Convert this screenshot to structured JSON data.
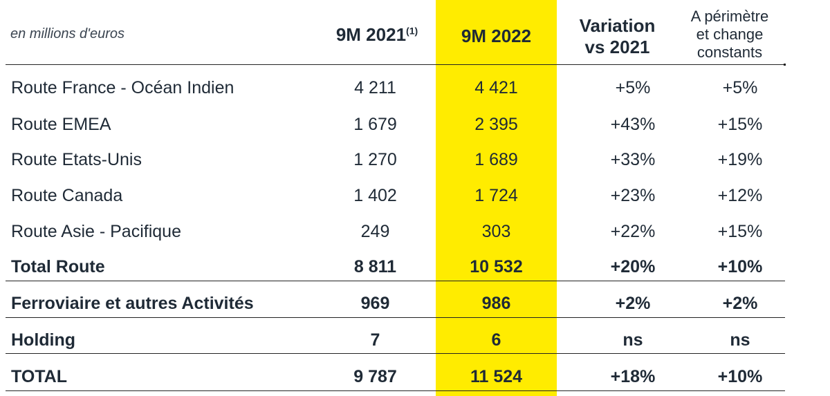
{
  "table": {
    "unit_label": "en millions d'euros",
    "col_2021": "9M 2021",
    "col_2021_note": "(1)",
    "col_2022": "9M 2022",
    "col_variation_line1": "Variation",
    "col_variation_line2": "vs 2021",
    "col_constant_line1": "A périmètre",
    "col_constant_line2": "et change",
    "col_constant_line3": "constants",
    "highlight_color": "#ffec00",
    "rows": [
      {
        "label": "Route France - Océan Indien",
        "v2021": "4 211",
        "v2022": "4 421",
        "variation": "+5%",
        "constant": "+5%"
      },
      {
        "label": "Route EMEA",
        "v2021": "1 679",
        "v2022": "2 395",
        "variation": "+43%",
        "constant": "+15%"
      },
      {
        "label": "Route Etats-Unis",
        "v2021": "1 270",
        "v2022": "1 689",
        "variation": "+33%",
        "constant": "+19%"
      },
      {
        "label": "Route Canada",
        "v2021": "1 402",
        "v2022": "1 724",
        "variation": "+23%",
        "constant": "+12%"
      },
      {
        "label": "Route Asie - Pacifique",
        "v2021": "249",
        "v2022": "303",
        "variation": "+22%",
        "constant": "+15%"
      },
      {
        "label": "Total Route",
        "v2021": "8 811",
        "v2022": "10 532",
        "variation": "+20%",
        "constant": "+10%"
      },
      {
        "label": "Ferroviaire et autres Activités",
        "v2021": "969",
        "v2022": "986",
        "variation": "+2%",
        "constant": "+2%"
      },
      {
        "label": "Holding",
        "v2021": "7",
        "v2022": "6",
        "variation": "ns",
        "constant": "ns"
      },
      {
        "label": "TOTAL",
        "v2021": "9 787",
        "v2022": "11 524",
        "variation": "+18%",
        "constant": "+10%"
      }
    ]
  }
}
